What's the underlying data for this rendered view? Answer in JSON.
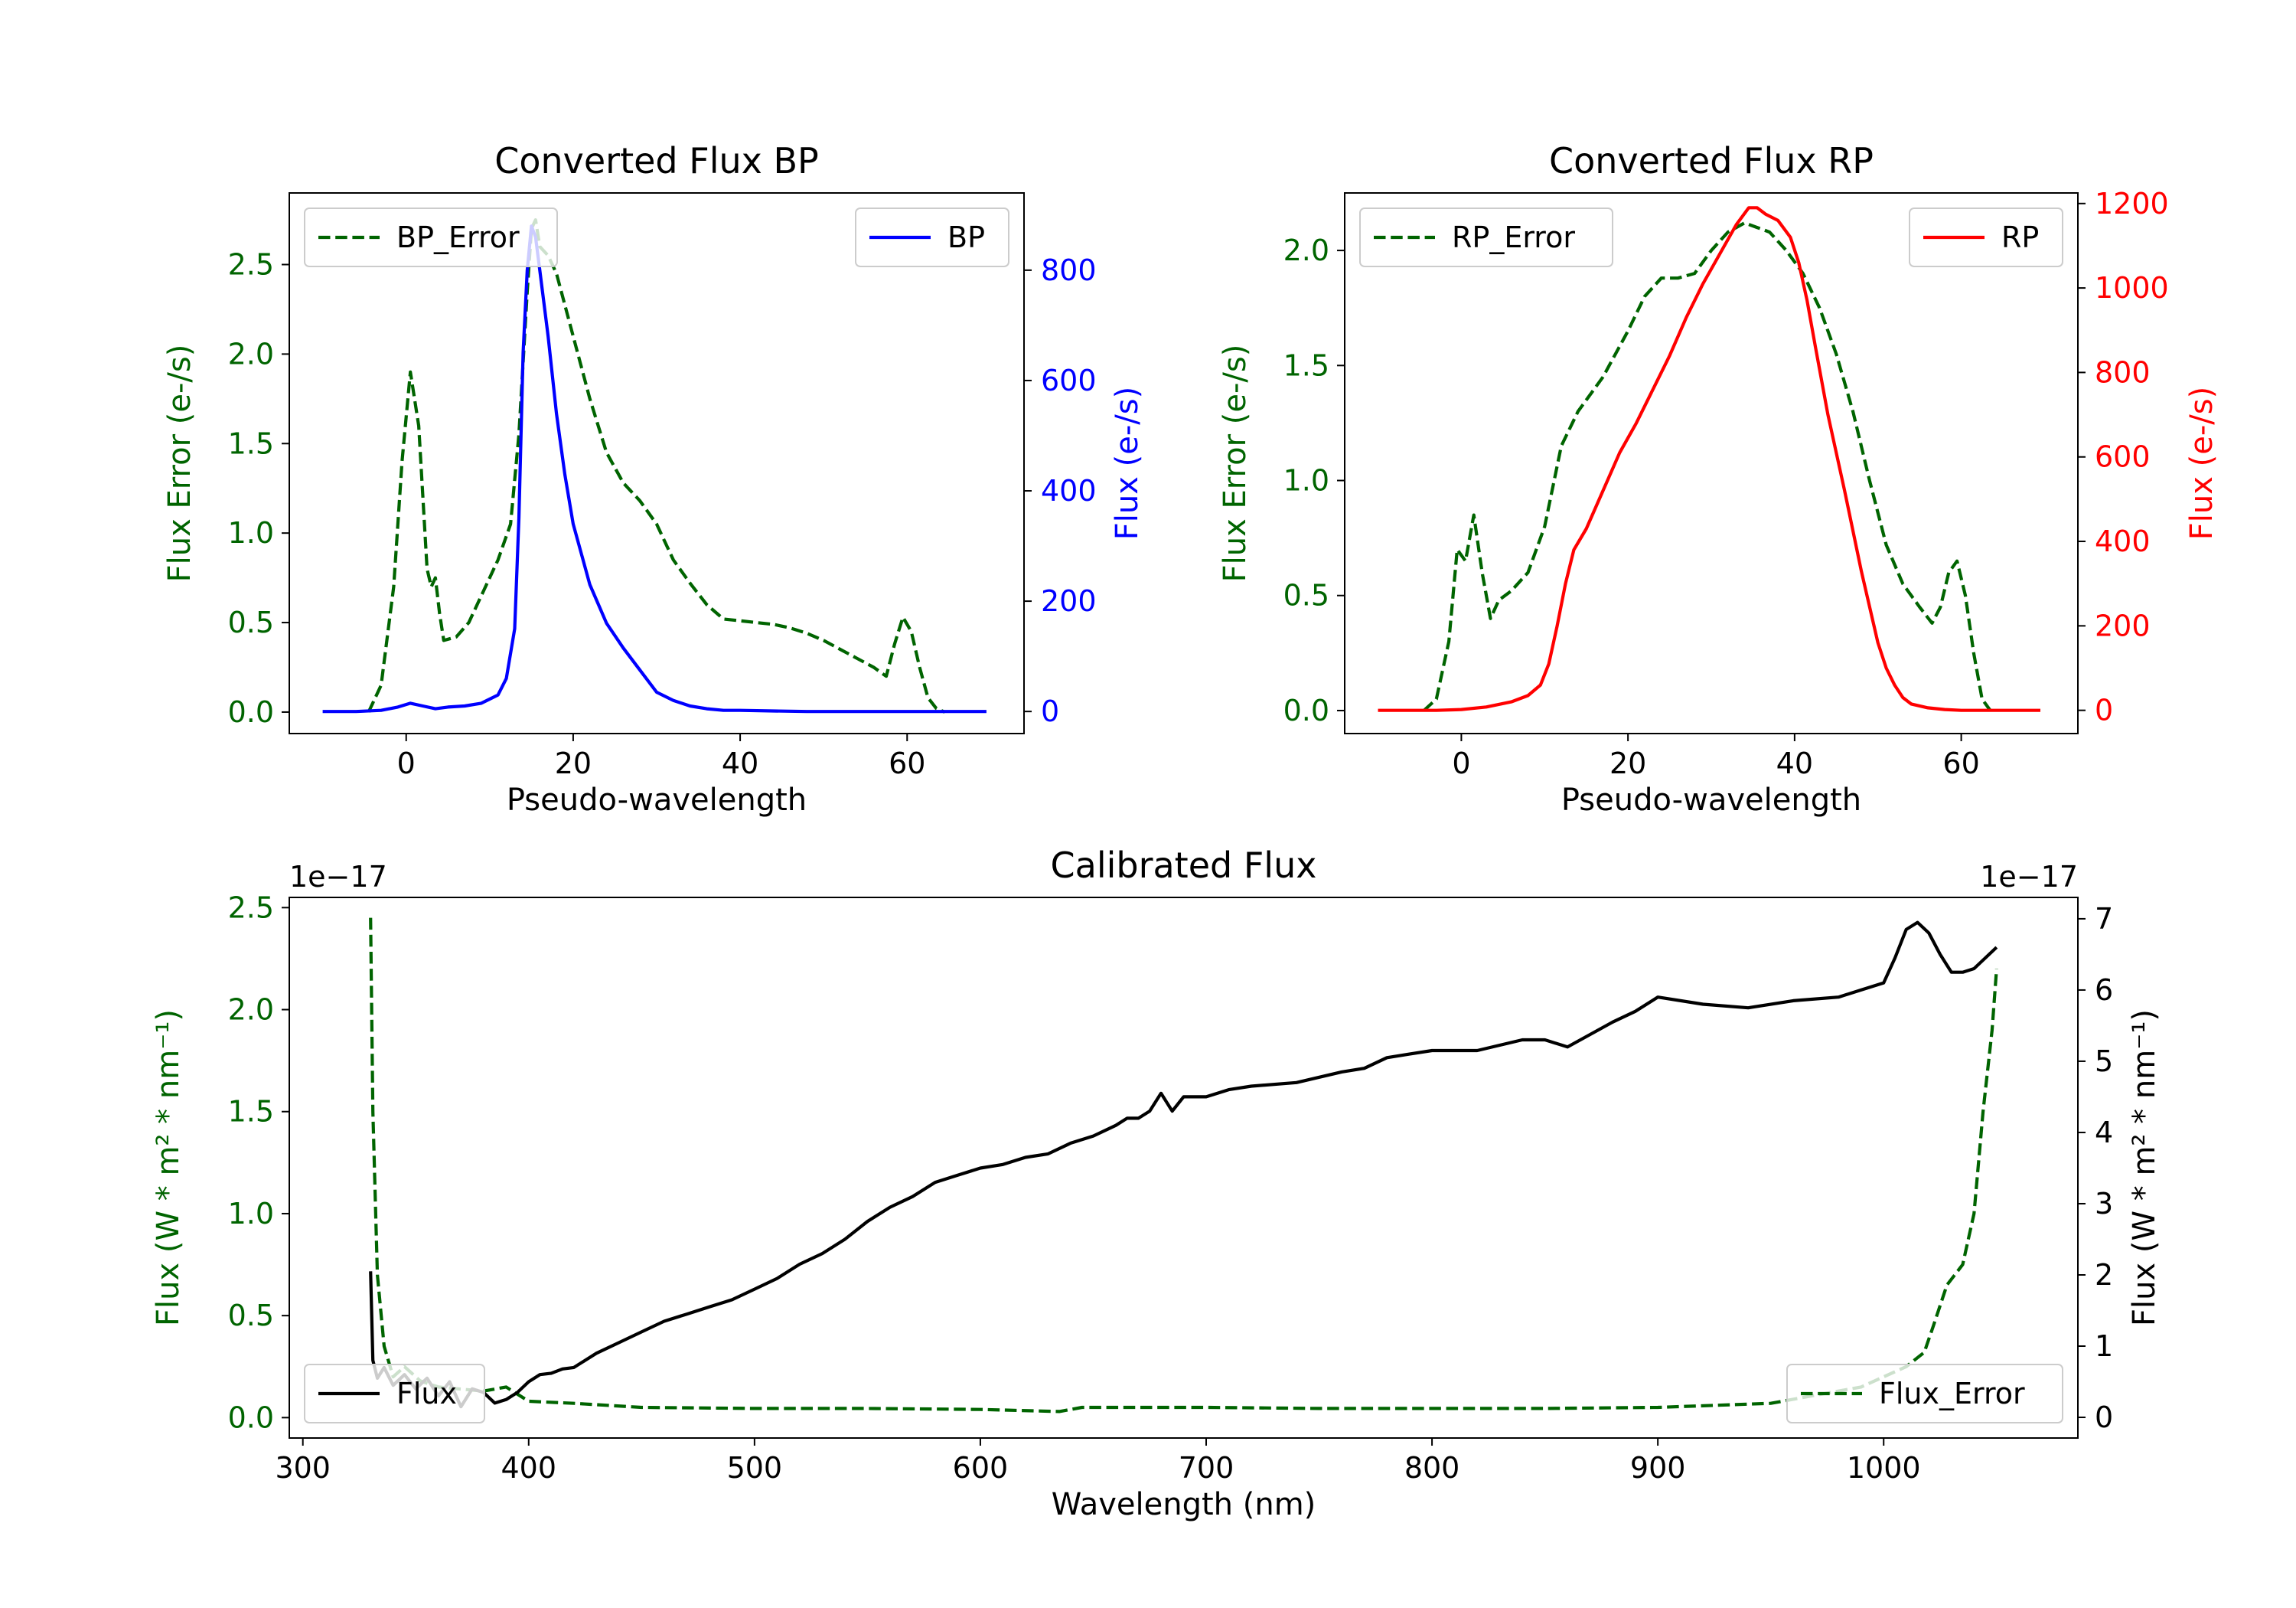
{
  "colors": {
    "error_green": "#006400",
    "bp_blue": "#0000ff",
    "rp_red": "#ff0000",
    "flux_black": "#000000",
    "axis": "#000000"
  },
  "chart_data": [
    {
      "id": "bp",
      "type": "line",
      "title": "Converted Flux BP",
      "xlabel": "Pseudo-wavelength",
      "ylabel_left": "Flux Error (e-/s)",
      "ylabel_right": "Flux (e-/s)",
      "xlim": [
        -14,
        74
      ],
      "ylim_left": [
        -0.12,
        2.9
      ],
      "ylim_right": [
        -40,
        940
      ],
      "xticks": [
        0,
        20,
        40,
        60
      ],
      "xtick_labels": [
        "0",
        "20",
        "40",
        "60"
      ],
      "yticks_left": [
        0.0,
        0.5,
        1.0,
        1.5,
        2.0,
        2.5
      ],
      "ytick_labels_left": [
        "0.0",
        "0.5",
        "1.0",
        "1.5",
        "2.0",
        "2.5"
      ],
      "yticks_right": [
        0,
        200,
        400,
        600,
        800
      ],
      "ytick_labels_right": [
        "0",
        "200",
        "400",
        "600",
        "800"
      ],
      "legend_left": {
        "label": "BP_Error",
        "position": "upper left",
        "style": "dashed"
      },
      "legend_right": {
        "label": "BP",
        "position": "upper right",
        "style": "solid"
      },
      "series": [
        {
          "name": "BP_Error",
          "axis": "left",
          "style": "dashed",
          "colorKey": "error_green",
          "x": [
            -4.5,
            -3,
            -1.5,
            -0.5,
            0.5,
            1.5,
            2.5,
            3,
            3.5,
            4,
            4.5,
            6,
            7.5,
            9,
            11,
            12.5,
            13.5,
            14.5,
            15,
            15.5,
            16,
            17,
            18,
            20,
            22,
            24,
            26,
            28,
            30,
            32,
            34,
            36,
            38,
            40,
            42,
            44,
            46,
            48,
            50,
            52,
            54,
            56,
            57.5,
            58.5,
            59.5,
            60.5,
            61.5,
            62.5,
            63.5,
            64.5
          ],
          "y": [
            0.0,
            0.15,
            0.7,
            1.4,
            1.9,
            1.6,
            0.8,
            0.7,
            0.75,
            0.55,
            0.4,
            0.42,
            0.5,
            0.65,
            0.85,
            1.05,
            1.55,
            2.35,
            2.7,
            2.75,
            2.6,
            2.55,
            2.45,
            2.1,
            1.75,
            1.45,
            1.28,
            1.18,
            1.05,
            0.85,
            0.72,
            0.6,
            0.52,
            0.51,
            0.5,
            0.49,
            0.47,
            0.44,
            0.4,
            0.35,
            0.3,
            0.25,
            0.2,
            0.38,
            0.53,
            0.45,
            0.25,
            0.08,
            0.02,
            0.0
          ]
        },
        {
          "name": "BP",
          "axis": "right",
          "style": "solid",
          "colorKey": "bp_blue",
          "x": [
            -10,
            -6,
            -3,
            -1,
            0.5,
            2,
            3.5,
            5,
            7,
            9,
            11,
            12,
            13,
            13.5,
            14,
            14.5,
            15,
            15.5,
            16,
            17,
            18,
            19,
            20,
            22,
            24,
            26,
            28,
            30,
            32,
            34,
            36,
            38,
            40,
            44,
            48,
            52,
            56,
            60,
            64,
            68,
            69.5
          ],
          "y": [
            0,
            0,
            2,
            8,
            15,
            10,
            5,
            8,
            10,
            15,
            30,
            60,
            150,
            350,
            650,
            800,
            880,
            860,
            800,
            680,
            540,
            430,
            340,
            230,
            160,
            115,
            75,
            35,
            20,
            10,
            5,
            2,
            2,
            1,
            0,
            0,
            0,
            0,
            0,
            0,
            0
          ]
        }
      ]
    },
    {
      "id": "rp",
      "type": "line",
      "title": "Converted Flux RP",
      "xlabel": "Pseudo-wavelength",
      "ylabel_left": "Flux Error (e-/s)",
      "ylabel_right": "Flux (e-/s)",
      "xlim": [
        -14,
        74
      ],
      "ylim_left": [
        -0.1,
        2.25
      ],
      "ylim_right": [
        -55,
        1225
      ],
      "xticks": [
        0,
        20,
        40,
        60
      ],
      "xtick_labels": [
        "0",
        "20",
        "40",
        "60"
      ],
      "yticks_left": [
        0.0,
        0.5,
        1.0,
        1.5,
        2.0
      ],
      "ytick_labels_left": [
        "0.0",
        "0.5",
        "1.0",
        "1.5",
        "2.0"
      ],
      "yticks_right": [
        0,
        200,
        400,
        600,
        800,
        1000,
        1200
      ],
      "ytick_labels_right": [
        "0",
        "200",
        "400",
        "600",
        "800",
        "1000",
        "1200"
      ],
      "legend_left": {
        "label": "RP_Error",
        "position": "upper left",
        "style": "dashed"
      },
      "legend_right": {
        "label": "RP",
        "position": "upper right",
        "style": "solid"
      },
      "series": [
        {
          "name": "RP_Error",
          "axis": "left",
          "style": "dashed",
          "colorKey": "error_green",
          "x": [
            -4.5,
            -3,
            -1.5,
            -0.5,
            0.5,
            1.5,
            2.5,
            3.5,
            4.5,
            6,
            8,
            10,
            12,
            14,
            17,
            20,
            22,
            24,
            26,
            28,
            30,
            32,
            34,
            35.5,
            37,
            39,
            41,
            43,
            45,
            47,
            49,
            51,
            53,
            55,
            56.5,
            57.5,
            58.5,
            59.5,
            60.5,
            61.5,
            62.5,
            63.5
          ],
          "y": [
            0.0,
            0.05,
            0.3,
            0.7,
            0.65,
            0.85,
            0.6,
            0.4,
            0.48,
            0.52,
            0.6,
            0.8,
            1.15,
            1.3,
            1.45,
            1.65,
            1.8,
            1.88,
            1.88,
            1.9,
            2.0,
            2.08,
            2.12,
            2.1,
            2.08,
            2.0,
            1.9,
            1.75,
            1.55,
            1.3,
            1.0,
            0.72,
            0.55,
            0.45,
            0.38,
            0.45,
            0.6,
            0.65,
            0.5,
            0.25,
            0.05,
            0.0
          ]
        },
        {
          "name": "RP",
          "axis": "right",
          "style": "solid",
          "colorKey": "rp_red",
          "x": [
            -10,
            -6,
            -3,
            0,
            3,
            6,
            8,
            9.5,
            10.5,
            11.5,
            12.5,
            13.5,
            15,
            17,
            19,
            21,
            23,
            25,
            27,
            29,
            31,
            33,
            34.5,
            35.5,
            36.5,
            38,
            39.5,
            40.5,
            41.5,
            42.5,
            44,
            46,
            48,
            50,
            51,
            52,
            53,
            54,
            56,
            58,
            60,
            62,
            66,
            69.5
          ],
          "y": [
            0,
            0,
            0,
            2,
            8,
            20,
            35,
            60,
            110,
            200,
            300,
            380,
            430,
            520,
            610,
            680,
            760,
            840,
            930,
            1010,
            1080,
            1150,
            1190,
            1190,
            1175,
            1160,
            1120,
            1060,
            970,
            860,
            700,
            520,
            330,
            160,
            100,
            60,
            30,
            15,
            6,
            2,
            0,
            0,
            0,
            0
          ]
        }
      ]
    },
    {
      "id": "calibrated",
      "type": "line",
      "title": "Calibrated Flux",
      "xlabel": "Wavelength (nm)",
      "ylabel_left": "Flux (W * m² * nm⁻¹)",
      "ylabel_right": "Flux (W * m² * nm⁻¹)",
      "offset_left": "1e−17",
      "offset_right": "1e−17",
      "xlim": [
        294,
        1086
      ],
      "ylim_left": [
        -0.1,
        2.55
      ],
      "ylim_right": [
        -0.29,
        7.3
      ],
      "xticks": [
        300,
        400,
        500,
        600,
        700,
        800,
        900,
        1000
      ],
      "xtick_labels": [
        "300",
        "400",
        "500",
        "600",
        "700",
        "800",
        "900",
        "1000"
      ],
      "yticks_left": [
        0.0,
        0.5,
        1.0,
        1.5,
        2.0,
        2.5
      ],
      "ytick_labels_left": [
        "0.0",
        "0.5",
        "1.0",
        "1.5",
        "2.0",
        "2.5"
      ],
      "yticks_right": [
        0,
        1,
        2,
        3,
        4,
        5,
        6,
        7
      ],
      "ytick_labels_right": [
        "0",
        "1",
        "2",
        "3",
        "4",
        "5",
        "6",
        "7"
      ],
      "legend_left": {
        "label": "Flux",
        "position": "lower left",
        "style": "solid"
      },
      "legend_right": {
        "label": "Flux_Error",
        "position": "lower right",
        "style": "dashed"
      },
      "series": [
        {
          "name": "Flux_Error",
          "axis": "left",
          "style": "dashed",
          "colorKey": "error_green",
          "x": [
            330,
            331,
            333,
            336,
            340,
            345,
            352,
            360,
            370,
            380,
            390,
            400,
            420,
            450,
            500,
            550,
            600,
            635,
            645,
            700,
            750,
            800,
            850,
            900,
            950,
            990,
            1010,
            1018,
            1022,
            1028,
            1035,
            1040,
            1044,
            1048,
            1050
          ],
          "y": [
            2.45,
            1.5,
            0.7,
            0.35,
            0.2,
            0.25,
            0.18,
            0.15,
            0.14,
            0.13,
            0.15,
            0.08,
            0.07,
            0.05,
            0.045,
            0.045,
            0.04,
            0.03,
            0.05,
            0.05,
            0.045,
            0.045,
            0.045,
            0.05,
            0.07,
            0.15,
            0.25,
            0.32,
            0.45,
            0.65,
            0.75,
            1.0,
            1.5,
            1.9,
            2.2
          ]
        },
        {
          "name": "Flux",
          "axis": "right",
          "style": "solid",
          "colorKey": "flux_black",
          "x": [
            330,
            331,
            333,
            336,
            340,
            345,
            350,
            355,
            360,
            365,
            370,
            375,
            380,
            385,
            390,
            395,
            400,
            405,
            410,
            415,
            420,
            430,
            440,
            450,
            460,
            470,
            480,
            490,
            500,
            510,
            520,
            530,
            540,
            550,
            560,
            570,
            580,
            590,
            600,
            610,
            620,
            630,
            640,
            650,
            660,
            665,
            670,
            675,
            680,
            685,
            690,
            700,
            710,
            720,
            740,
            760,
            770,
            780,
            790,
            800,
            820,
            840,
            850,
            860,
            880,
            890,
            900,
            920,
            940,
            960,
            980,
            990,
            1000,
            1005,
            1010,
            1015,
            1020,
            1025,
            1030,
            1035,
            1040,
            1045,
            1050
          ],
          "y": [
            2.05,
            0.8,
            0.55,
            0.7,
            0.45,
            0.6,
            0.4,
            0.55,
            0.3,
            0.5,
            0.15,
            0.4,
            0.35,
            0.2,
            0.25,
            0.35,
            0.5,
            0.6,
            0.62,
            0.68,
            0.7,
            0.9,
            1.05,
            1.2,
            1.35,
            1.45,
            1.55,
            1.65,
            1.8,
            1.95,
            2.15,
            2.3,
            2.5,
            2.75,
            2.95,
            3.1,
            3.3,
            3.4,
            3.5,
            3.55,
            3.65,
            3.7,
            3.85,
            3.95,
            4.1,
            4.2,
            4.2,
            4.3,
            4.55,
            4.3,
            4.5,
            4.5,
            4.6,
            4.65,
            4.7,
            4.85,
            4.9,
            5.05,
            5.1,
            5.15,
            5.15,
            5.3,
            5.3,
            5.2,
            5.55,
            5.7,
            5.9,
            5.8,
            5.75,
            5.85,
            5.9,
            6.0,
            6.1,
            6.45,
            6.85,
            6.95,
            6.8,
            6.5,
            6.25,
            6.25,
            6.3,
            6.45,
            6.6
          ]
        }
      ]
    }
  ]
}
